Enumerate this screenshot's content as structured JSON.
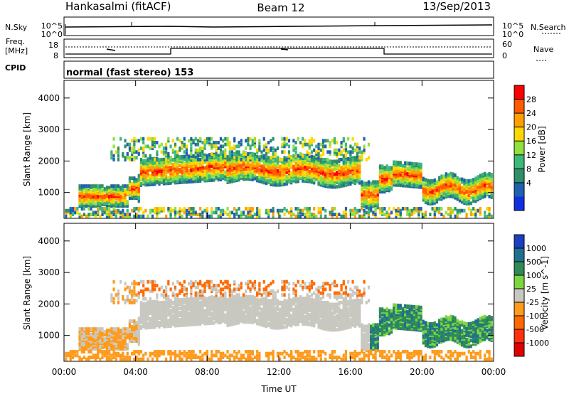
{
  "header": {
    "station": "Hankasalmi (fitACF)",
    "beam": "Beam 12",
    "date": "13/Sep/2013"
  },
  "side_labels": {
    "nsky": "N.Sky",
    "nsearch": "N.Search",
    "freq": "Freq.",
    "freq_unit": "[MHz]",
    "nave": "Nave",
    "cpid": "CPID"
  },
  "aux_ticks": {
    "n_top_left": "10^5",
    "n_bot_left": "10^0",
    "n_top_right": "10^5",
    "n_bot_right": "10^0",
    "freq_top": "18",
    "freq_bot": "8",
    "nave_top": "60",
    "nave_bot": "0"
  },
  "cpid_text": "normal (fast stereo) 153",
  "chart_data": [
    {
      "type": "heatmap",
      "title": "",
      "variable": "Power",
      "colorbar_label": "Power [dB]",
      "colorbar_ticks": [
        "28",
        "24",
        "20",
        "16",
        "12",
        "8",
        "4"
      ],
      "colorbar_colors": [
        "#ff0000",
        "#ff5a00",
        "#ffa000",
        "#ffd800",
        "#90e040",
        "#3cb878",
        "#2f8f68",
        "#2060b0",
        "#1030e0"
      ],
      "ylabel": "Slant Range [km]",
      "yticks": [
        "4000",
        "3000",
        "2000",
        "1000"
      ],
      "ylim": [
        180,
        4560
      ],
      "xlabel": "",
      "xlim_hours": [
        0,
        24
      ]
    },
    {
      "type": "heatmap",
      "title": "",
      "variable": "Velocity",
      "colorbar_label": "Velocity [m s^-1]",
      "colorbar_ticks": [
        "1000",
        "500",
        "100",
        "25",
        "-25",
        "-100",
        "-500",
        "-1000"
      ],
      "colorbar_colors": [
        "#1a3fbf",
        "#1f6f8f",
        "#2e8b57",
        "#7cd640",
        "#c8c8c0",
        "#ff9a1a",
        "#ff6a00",
        "#ff3010",
        "#e00000"
      ],
      "ylabel": "Slant Range [km]",
      "yticks": [
        "4000",
        "3000",
        "2000",
        "1000"
      ],
      "ylim": [
        180,
        4560
      ],
      "xlabel": "Time UT",
      "xticks": [
        "00:00",
        "04:00",
        "08:00",
        "12:00",
        "16:00",
        "20:00",
        "00:00"
      ],
      "xlim_hours": [
        0,
        24
      ]
    }
  ]
}
